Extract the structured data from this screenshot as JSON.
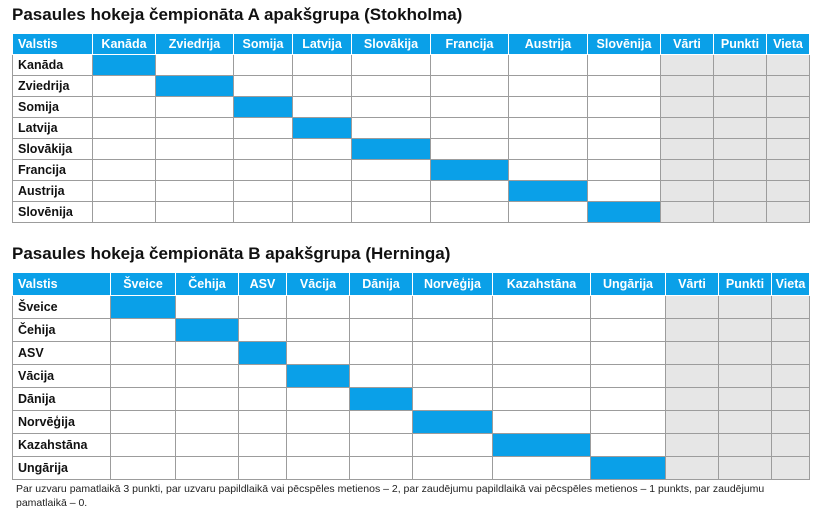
{
  "groupA": {
    "title": "Pasaules hokeja čempionāta A apakšgrupa (Stokholma)",
    "team_header": "Valstis",
    "teams": [
      "Kanāda",
      "Zviedrija",
      "Somija",
      "Latvija",
      "Slovākija",
      "Francija",
      "Austrija",
      "Slovēnija"
    ],
    "stat_headers": [
      "Vārti",
      "Punkti",
      "Vieta"
    ]
  },
  "groupB": {
    "title": "Pasaules hokeja čempionāta B apakšgrupa (Herninga)",
    "team_header": "Valstis",
    "teams": [
      "Šveice",
      "Čehija",
      "ASV",
      "Vācija",
      "Dānija",
      "Norvēģija",
      "Kazahstāna",
      "Ungārija"
    ],
    "stat_headers": [
      "Vārti",
      "Punkti",
      "Vieta"
    ]
  },
  "footnote": "Par uzvaru pamatlaikā 3 punkti, par uzvaru papildlaikā vai pēcspēles metienos – 2, par zaudējumu papildlaikā vai pēcspēles metienos – 1 punkts, par zaudējumu pamatlaikā – 0.",
  "colors": {
    "accent": "#0aa0e8",
    "stat_fill": "#e6e6e6"
  }
}
